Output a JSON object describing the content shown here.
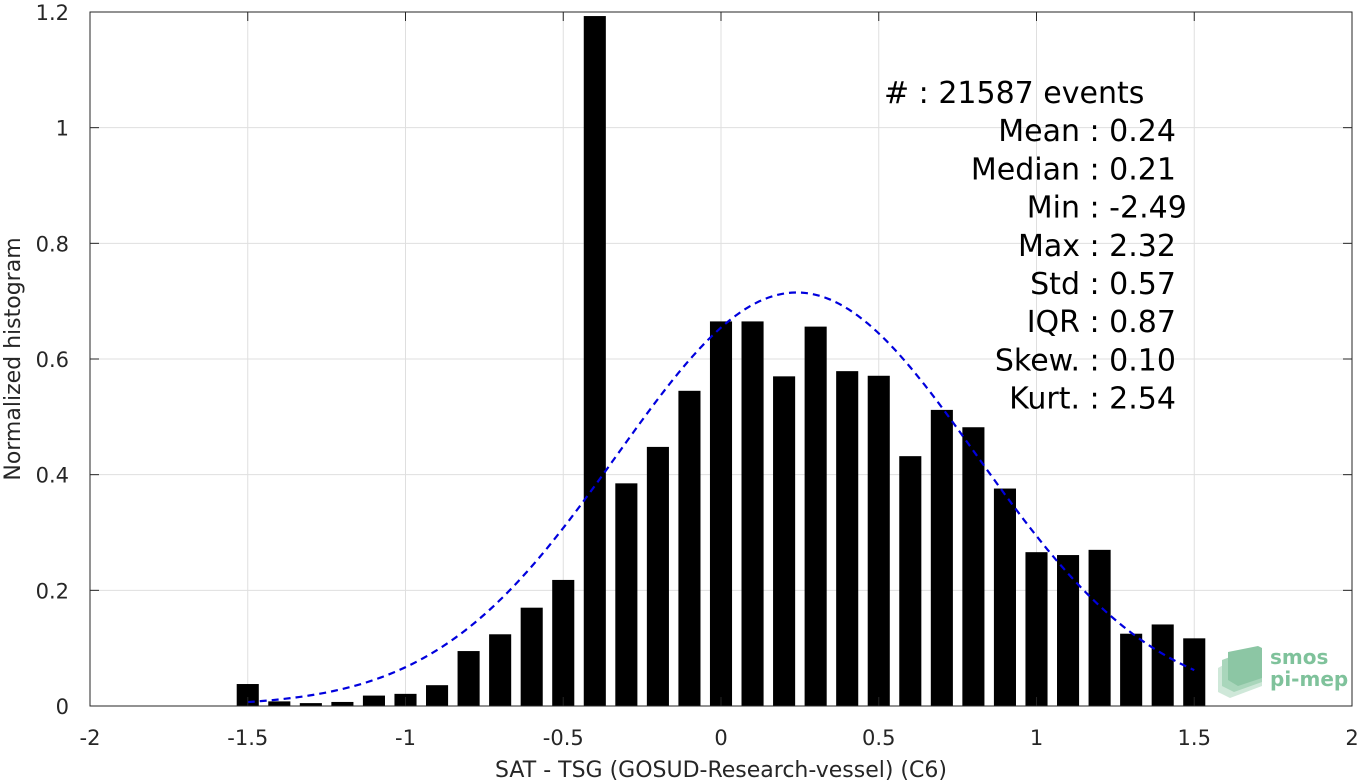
{
  "chart_data": {
    "type": "bar",
    "xlabel": "SAT - TSG (GOSUD-Research-vessel) (C6)",
    "ylabel": "Normalized histogram",
    "xlim": [
      -2,
      2
    ],
    "ylim": [
      0,
      1.2
    ],
    "grid": true,
    "xticks": [
      "-2",
      "-1.5",
      "-1",
      "-0.5",
      "0",
      "0.5",
      "1",
      "1.5",
      "2"
    ],
    "yticks": [
      "0",
      "0.2",
      "0.4",
      "0.6",
      "0.8",
      "1",
      "1.2"
    ],
    "bin_width": 0.1,
    "bar_width_fraction": 0.7,
    "bin_centers": [
      -1.5,
      -1.4,
      -1.3,
      -1.2,
      -1.1,
      -1.0,
      -0.9,
      -0.8,
      -0.7,
      -0.6,
      -0.5,
      -0.4,
      -0.3,
      -0.2,
      -0.1,
      0.0,
      0.1,
      0.2,
      0.3,
      0.4,
      0.5,
      0.6,
      0.7,
      0.8,
      0.9,
      1.0,
      1.1,
      1.2,
      1.3,
      1.4,
      1.5
    ],
    "values": [
      0.038,
      0.008,
      0.005,
      0.007,
      0.018,
      0.021,
      0.036,
      0.095,
      0.124,
      0.17,
      0.218,
      1.193,
      0.385,
      0.448,
      0.545,
      0.665,
      0.665,
      0.57,
      0.656,
      0.579,
      0.571,
      0.432,
      0.512,
      0.482,
      0.376,
      0.266,
      0.261,
      0.27,
      0.125,
      0.141,
      0.117
    ],
    "fit": {
      "style": "dashed",
      "color": "#0000dd",
      "mean": 0.24,
      "std": 0.57,
      "peak": 0.715,
      "x_range": [
        -1.5,
        1.5
      ]
    },
    "bar_color": "#000000",
    "stats": [
      {
        "label": "#",
        "sep": "  : ",
        "value": "21587 events"
      },
      {
        "label": "Mean",
        "sep": " : ",
        "value": "0.24"
      },
      {
        "label": "Median",
        "sep": " : ",
        "value": "0.21"
      },
      {
        "label": "Min",
        "sep": " : ",
        "value": "-2.49"
      },
      {
        "label": "Max",
        "sep": " : ",
        "value": "2.32"
      },
      {
        "label": "Std",
        "sep": " : ",
        "value": "0.57"
      },
      {
        "label": "IQR",
        "sep": " : ",
        "value": "0.87"
      },
      {
        "label": "Skew.",
        "sep": " : ",
        "value": "0.10"
      },
      {
        "label": "Kurt.",
        "sep": " : ",
        "value": "2.54"
      }
    ]
  },
  "logo": {
    "line1": "smos",
    "line2": "pi-mep",
    "color": "#7fc29b"
  }
}
